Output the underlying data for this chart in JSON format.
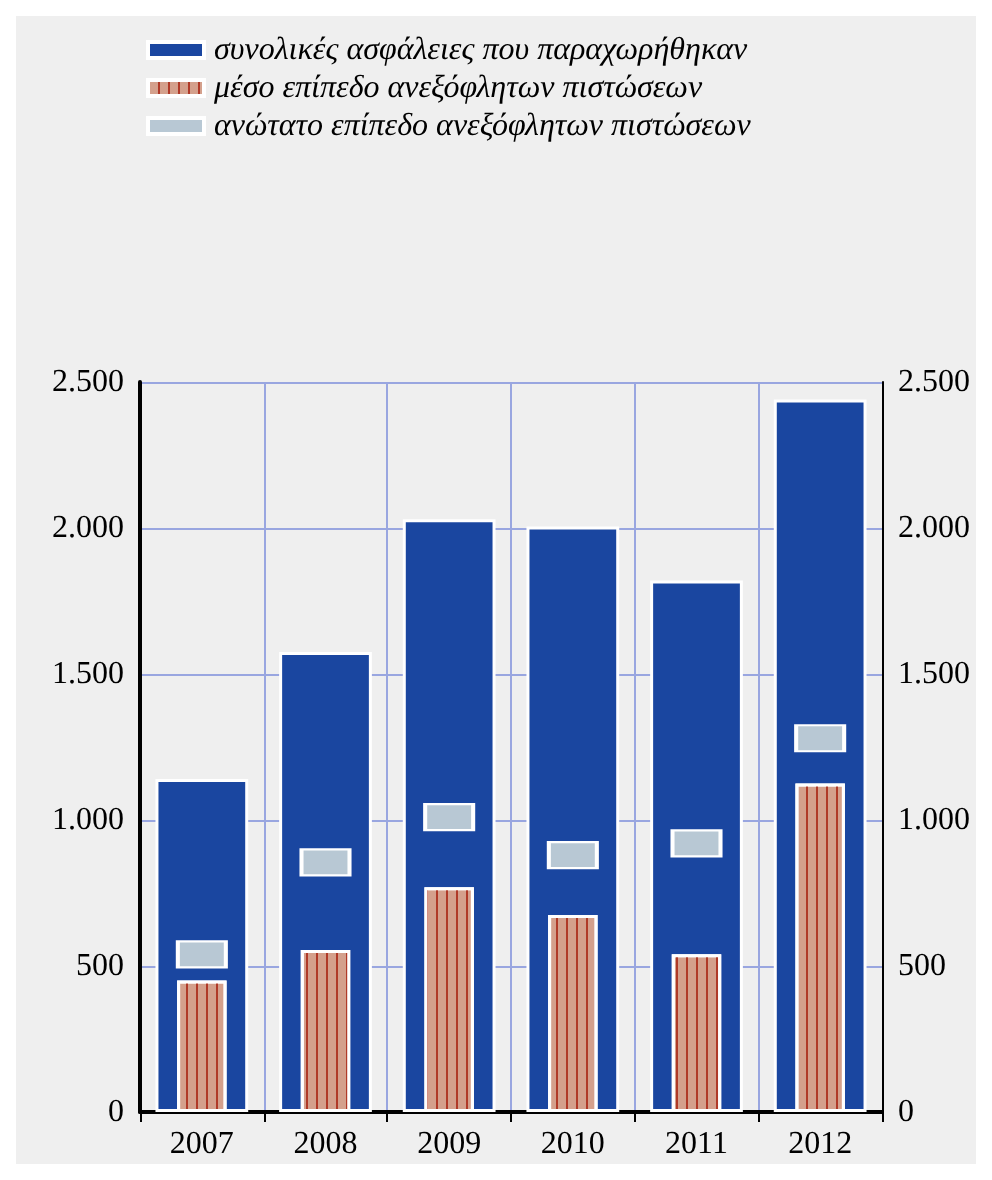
{
  "chart_data": {
    "type": "bar",
    "categories": [
      "2007",
      "2008",
      "2009",
      "2010",
      "2011",
      "2012"
    ],
    "series": [
      {
        "name": "συνολικές ασφάλειες που παραχωρήθηκαν",
        "color": "#1a46a0",
        "values": [
          1140,
          1575,
          2030,
          2005,
          1820,
          2440
        ]
      },
      {
        "name": "μέσο επίπεδο ανεξόφλητων πιστώσεων",
        "color": "#d4a08c",
        "values": [
          450,
          555,
          770,
          675,
          540,
          1125
        ]
      },
      {
        "name": "ανώτατο επίπεδο ανεξόφλητων πιστώσεων",
        "type": "scatter",
        "color": "#b8c8d4",
        "values": [
          540,
          855,
          1010,
          880,
          920,
          1280
        ]
      }
    ],
    "ylim": [
      0,
      2500
    ],
    "yticks": [
      0,
      500,
      {
        "value": 1000,
        "label": "1.000"
      },
      {
        "value": 1500,
        "label": "1.500"
      },
      {
        "value": 2000,
        "label": "2.000"
      },
      {
        "value": 2500,
        "label": "2.500"
      }
    ],
    "y2lim": [
      0,
      2500
    ],
    "y2ticks": [
      0,
      500,
      {
        "value": 1000,
        "label": "1.000"
      },
      {
        "value": 1500,
        "label": "1.500"
      },
      {
        "value": 2000,
        "label": "2.000"
      },
      {
        "value": 2500,
        "label": "2.500"
      }
    ],
    "grid": true,
    "legend": "top",
    "marker": "square"
  }
}
